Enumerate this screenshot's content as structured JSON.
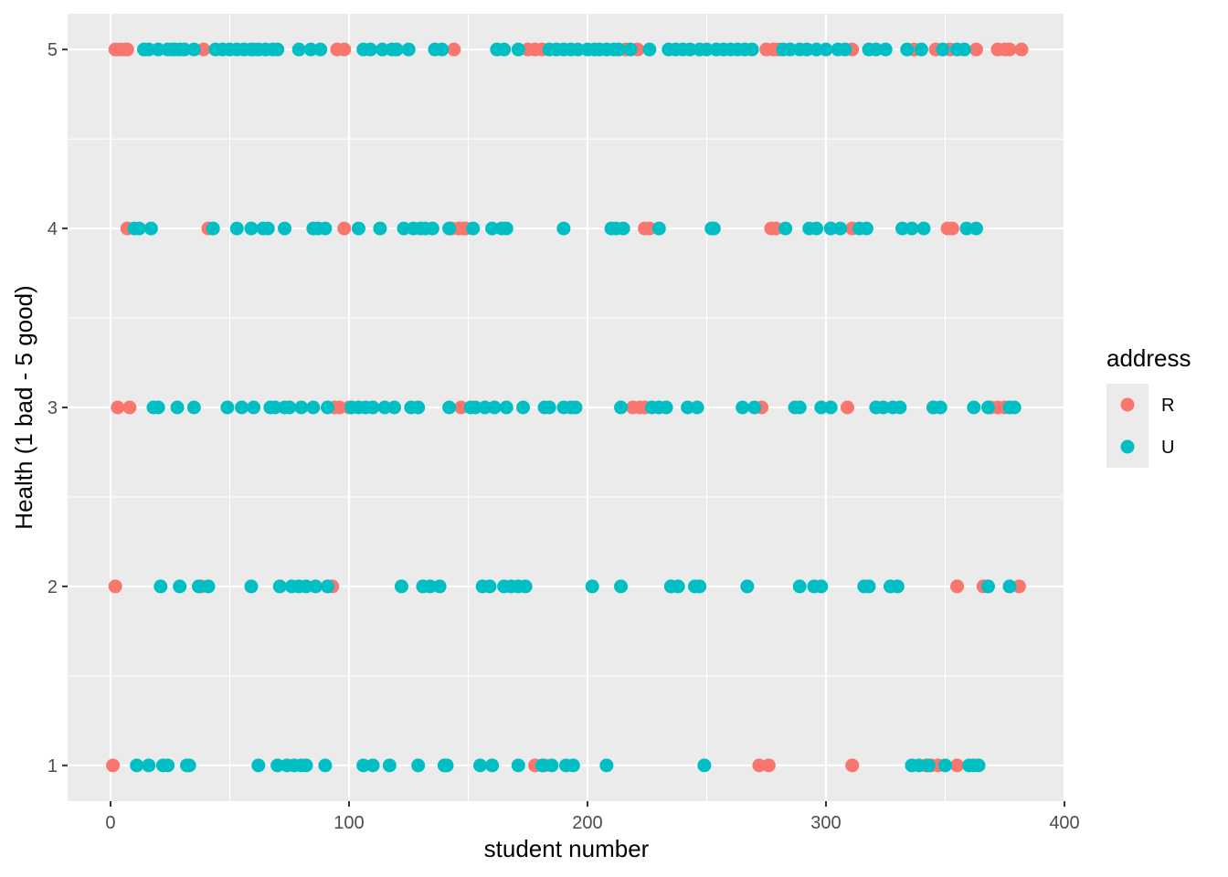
{
  "chart_data": {
    "type": "scatter",
    "title": "",
    "xlabel": "student number",
    "ylabel": "Health (1 bad - 5 good)",
    "xlim": [
      -18,
      400
    ],
    "ylim": [
      0.8,
      5.2
    ],
    "x_ticks": [
      0,
      100,
      200,
      300,
      400
    ],
    "y_ticks": [
      1,
      2,
      3,
      4,
      5
    ],
    "grid": true,
    "legend": {
      "title": "address",
      "placement": "right",
      "entries": [
        {
          "label": "R",
          "color": "#F8766D"
        },
        {
          "label": "U",
          "color": "#00BFC4"
        }
      ]
    },
    "series": [
      {
        "name": "R",
        "color": "#F8766D",
        "points": [
          [
            1,
            1
          ],
          [
            178,
            1
          ],
          [
            182,
            1
          ],
          [
            272,
            1
          ],
          [
            276,
            1
          ],
          [
            311,
            1
          ],
          [
            342,
            1
          ],
          [
            344,
            1
          ],
          [
            347,
            1
          ],
          [
            355,
            1
          ],
          [
            2,
            2
          ],
          [
            38,
            2
          ],
          [
            93,
            2
          ],
          [
            355,
            2
          ],
          [
            366,
            2
          ],
          [
            381,
            2
          ],
          [
            3,
            3
          ],
          [
            8,
            3
          ],
          [
            94,
            3
          ],
          [
            96,
            3
          ],
          [
            100,
            3
          ],
          [
            147,
            3
          ],
          [
            219,
            3
          ],
          [
            222,
            3
          ],
          [
            224,
            3
          ],
          [
            273,
            3
          ],
          [
            309,
            3
          ],
          [
            345,
            3
          ],
          [
            369,
            3
          ],
          [
            372,
            3
          ],
          [
            375,
            3
          ],
          [
            7,
            4
          ],
          [
            41,
            4
          ],
          [
            98,
            4
          ],
          [
            143,
            4
          ],
          [
            146,
            4
          ],
          [
            148,
            4
          ],
          [
            149,
            4
          ],
          [
            224,
            4
          ],
          [
            226,
            4
          ],
          [
            277,
            4
          ],
          [
            279,
            4
          ],
          [
            311,
            4
          ],
          [
            351,
            4
          ],
          [
            353,
            4
          ],
          [
            2,
            5
          ],
          [
            4,
            5
          ],
          [
            6,
            5
          ],
          [
            7,
            5
          ],
          [
            39,
            5
          ],
          [
            95,
            5
          ],
          [
            98,
            5
          ],
          [
            144,
            5
          ],
          [
            175,
            5
          ],
          [
            178,
            5
          ],
          [
            181,
            5
          ],
          [
            216,
            5
          ],
          [
            221,
            5
          ],
          [
            275,
            5
          ],
          [
            278,
            5
          ],
          [
            280,
            5
          ],
          [
            311,
            5
          ],
          [
            337,
            5
          ],
          [
            346,
            5
          ],
          [
            352,
            5
          ],
          [
            363,
            5
          ],
          [
            372,
            5
          ],
          [
            375,
            5
          ],
          [
            377,
            5
          ],
          [
            382,
            5
          ]
        ]
      },
      {
        "name": "U",
        "color": "#00BFC4",
        "points": [
          [
            11,
            1
          ],
          [
            16,
            1
          ],
          [
            22,
            1
          ],
          [
            24,
            1
          ],
          [
            32,
            1
          ],
          [
            33,
            1
          ],
          [
            62,
            1
          ],
          [
            70,
            1
          ],
          [
            74,
            1
          ],
          [
            77,
            1
          ],
          [
            80,
            1
          ],
          [
            82,
            1
          ],
          [
            90,
            1
          ],
          [
            106,
            1
          ],
          [
            110,
            1
          ],
          [
            117,
            1
          ],
          [
            129,
            1
          ],
          [
            140,
            1
          ],
          [
            141,
            1
          ],
          [
            155,
            1
          ],
          [
            160,
            1
          ],
          [
            171,
            1
          ],
          [
            181,
            1
          ],
          [
            185,
            1
          ],
          [
            191,
            1
          ],
          [
            194,
            1
          ],
          [
            208,
            1
          ],
          [
            249,
            1
          ],
          [
            336,
            1
          ],
          [
            339,
            1
          ],
          [
            343,
            1
          ],
          [
            350,
            1
          ],
          [
            360,
            1
          ],
          [
            362,
            1
          ],
          [
            364,
            1
          ],
          [
            21,
            2
          ],
          [
            29,
            2
          ],
          [
            37,
            2
          ],
          [
            41,
            2
          ],
          [
            59,
            2
          ],
          [
            71,
            2
          ],
          [
            76,
            2
          ],
          [
            79,
            2
          ],
          [
            82,
            2
          ],
          [
            86,
            2
          ],
          [
            91,
            2
          ],
          [
            122,
            2
          ],
          [
            131,
            2
          ],
          [
            134,
            2
          ],
          [
            138,
            2
          ],
          [
            156,
            2
          ],
          [
            159,
            2
          ],
          [
            165,
            2
          ],
          [
            168,
            2
          ],
          [
            171,
            2
          ],
          [
            174,
            2
          ],
          [
            202,
            2
          ],
          [
            214,
            2
          ],
          [
            235,
            2
          ],
          [
            238,
            2
          ],
          [
            245,
            2
          ],
          [
            247,
            2
          ],
          [
            267,
            2
          ],
          [
            289,
            2
          ],
          [
            295,
            2
          ],
          [
            298,
            2
          ],
          [
            316,
            2
          ],
          [
            318,
            2
          ],
          [
            327,
            2
          ],
          [
            330,
            2
          ],
          [
            368,
            2
          ],
          [
            377,
            2
          ],
          [
            18,
            3
          ],
          [
            20,
            3
          ],
          [
            28,
            3
          ],
          [
            35,
            3
          ],
          [
            49,
            3
          ],
          [
            55,
            3
          ],
          [
            60,
            3
          ],
          [
            67,
            3
          ],
          [
            69,
            3
          ],
          [
            73,
            3
          ],
          [
            75,
            3
          ],
          [
            80,
            3
          ],
          [
            85,
            3
          ],
          [
            91,
            3
          ],
          [
            101,
            3
          ],
          [
            104,
            3
          ],
          [
            107,
            3
          ],
          [
            110,
            3
          ],
          [
            115,
            3
          ],
          [
            119,
            3
          ],
          [
            126,
            3
          ],
          [
            129,
            3
          ],
          [
            142,
            3
          ],
          [
            151,
            3
          ],
          [
            153,
            3
          ],
          [
            157,
            3
          ],
          [
            161,
            3
          ],
          [
            166,
            3
          ],
          [
            173,
            3
          ],
          [
            182,
            3
          ],
          [
            184,
            3
          ],
          [
            190,
            3
          ],
          [
            193,
            3
          ],
          [
            195,
            3
          ],
          [
            214,
            3
          ],
          [
            227,
            3
          ],
          [
            230,
            3
          ],
          [
            233,
            3
          ],
          [
            242,
            3
          ],
          [
            246,
            3
          ],
          [
            265,
            3
          ],
          [
            270,
            3
          ],
          [
            287,
            3
          ],
          [
            289,
            3
          ],
          [
            298,
            3
          ],
          [
            302,
            3
          ],
          [
            321,
            3
          ],
          [
            324,
            3
          ],
          [
            328,
            3
          ],
          [
            331,
            3
          ],
          [
            345,
            3
          ],
          [
            348,
            3
          ],
          [
            362,
            3
          ],
          [
            368,
            3
          ],
          [
            377,
            3
          ],
          [
            379,
            3
          ],
          [
            10,
            4
          ],
          [
            12,
            4
          ],
          [
            17,
            4
          ],
          [
            43,
            4
          ],
          [
            53,
            4
          ],
          [
            59,
            4
          ],
          [
            64,
            4
          ],
          [
            66,
            4
          ],
          [
            73,
            4
          ],
          [
            85,
            4
          ],
          [
            87,
            4
          ],
          [
            90,
            4
          ],
          [
            104,
            4
          ],
          [
            113,
            4
          ],
          [
            123,
            4
          ],
          [
            127,
            4
          ],
          [
            130,
            4
          ],
          [
            132,
            4
          ],
          [
            135,
            4
          ],
          [
            142,
            4
          ],
          [
            152,
            4
          ],
          [
            160,
            4
          ],
          [
            164,
            4
          ],
          [
            166,
            4
          ],
          [
            190,
            4
          ],
          [
            210,
            4
          ],
          [
            212,
            4
          ],
          [
            215,
            4
          ],
          [
            230,
            4
          ],
          [
            252,
            4
          ],
          [
            253,
            4
          ],
          [
            283,
            4
          ],
          [
            293,
            4
          ],
          [
            296,
            4
          ],
          [
            302,
            4
          ],
          [
            306,
            4
          ],
          [
            314,
            4
          ],
          [
            317,
            4
          ],
          [
            332,
            4
          ],
          [
            336,
            4
          ],
          [
            341,
            4
          ],
          [
            359,
            4
          ],
          [
            363,
            4
          ],
          [
            14,
            5
          ],
          [
            16,
            5
          ],
          [
            20,
            5
          ],
          [
            24,
            5
          ],
          [
            26,
            5
          ],
          [
            27,
            5
          ],
          [
            29,
            5
          ],
          [
            31,
            5
          ],
          [
            35,
            5
          ],
          [
            44,
            5
          ],
          [
            47,
            5
          ],
          [
            50,
            5
          ],
          [
            53,
            5
          ],
          [
            56,
            5
          ],
          [
            59,
            5
          ],
          [
            60,
            5
          ],
          [
            62,
            5
          ],
          [
            65,
            5
          ],
          [
            68,
            5
          ],
          [
            70,
            5
          ],
          [
            79,
            5
          ],
          [
            84,
            5
          ],
          [
            88,
            5
          ],
          [
            106,
            5
          ],
          [
            109,
            5
          ],
          [
            114,
            5
          ],
          [
            118,
            5
          ],
          [
            120,
            5
          ],
          [
            125,
            5
          ],
          [
            136,
            5
          ],
          [
            139,
            5
          ],
          [
            162,
            5
          ],
          [
            165,
            5
          ],
          [
            171,
            5
          ],
          [
            184,
            5
          ],
          [
            187,
            5
          ],
          [
            190,
            5
          ],
          [
            193,
            5
          ],
          [
            196,
            5
          ],
          [
            200,
            5
          ],
          [
            203,
            5
          ],
          [
            205,
            5
          ],
          [
            208,
            5
          ],
          [
            211,
            5
          ],
          [
            213,
            5
          ],
          [
            218,
            5
          ],
          [
            226,
            5
          ],
          [
            234,
            5
          ],
          [
            237,
            5
          ],
          [
            240,
            5
          ],
          [
            243,
            5
          ],
          [
            247,
            5
          ],
          [
            250,
            5
          ],
          [
            254,
            5
          ],
          [
            257,
            5
          ],
          [
            260,
            5
          ],
          [
            263,
            5
          ],
          [
            266,
            5
          ],
          [
            269,
            5
          ],
          [
            282,
            5
          ],
          [
            285,
            5
          ],
          [
            289,
            5
          ],
          [
            292,
            5
          ],
          [
            296,
            5
          ],
          [
            300,
            5
          ],
          [
            305,
            5
          ],
          [
            308,
            5
          ],
          [
            318,
            5
          ],
          [
            321,
            5
          ],
          [
            325,
            5
          ],
          [
            334,
            5
          ],
          [
            340,
            5
          ],
          [
            349,
            5
          ],
          [
            355,
            5
          ],
          [
            358,
            5
          ]
        ]
      }
    ]
  }
}
